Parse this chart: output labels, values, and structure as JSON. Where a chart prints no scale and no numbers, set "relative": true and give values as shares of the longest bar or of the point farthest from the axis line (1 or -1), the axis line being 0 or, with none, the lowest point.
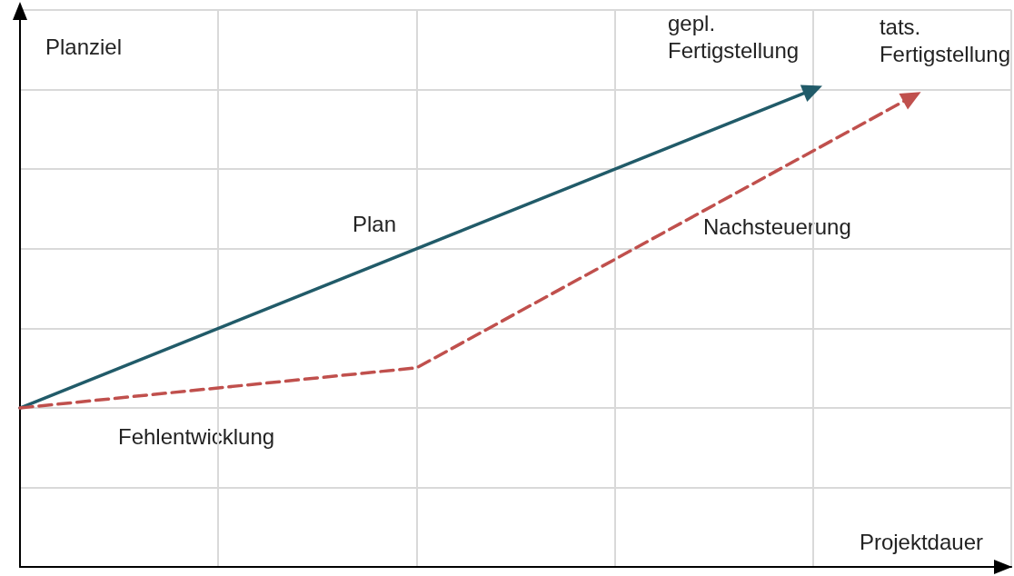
{
  "chart_data": {
    "type": "line",
    "relative": true,
    "ylabel": "Planziel",
    "xlabel": "Projektdauer",
    "categories": [
      null,
      null,
      null,
      null,
      null,
      null,
      null,
      null,
      null,
      null,
      null
    ],
    "series": [
      {
        "name": "Plan",
        "color": "#215b69",
        "line_style": "solid",
        "values": [
          0.333,
          null,
          null,
          null,
          null,
          null,
          null,
          null,
          1,
          null,
          null
        ]
      },
      {
        "color": "#c0504d",
        "line_style": "dashed",
        "values": [
          0.333,
          null,
          null,
          null,
          0.417,
          null,
          null,
          null,
          null,
          0.985,
          null
        ]
      }
    ],
    "annotations": [
      "gepl.\nFertigstellung",
      "tats.\nFertigstellung",
      "Nachsteuerung",
      "Fehlentwicklung"
    ],
    "grid": true,
    "legend": false
  }
}
